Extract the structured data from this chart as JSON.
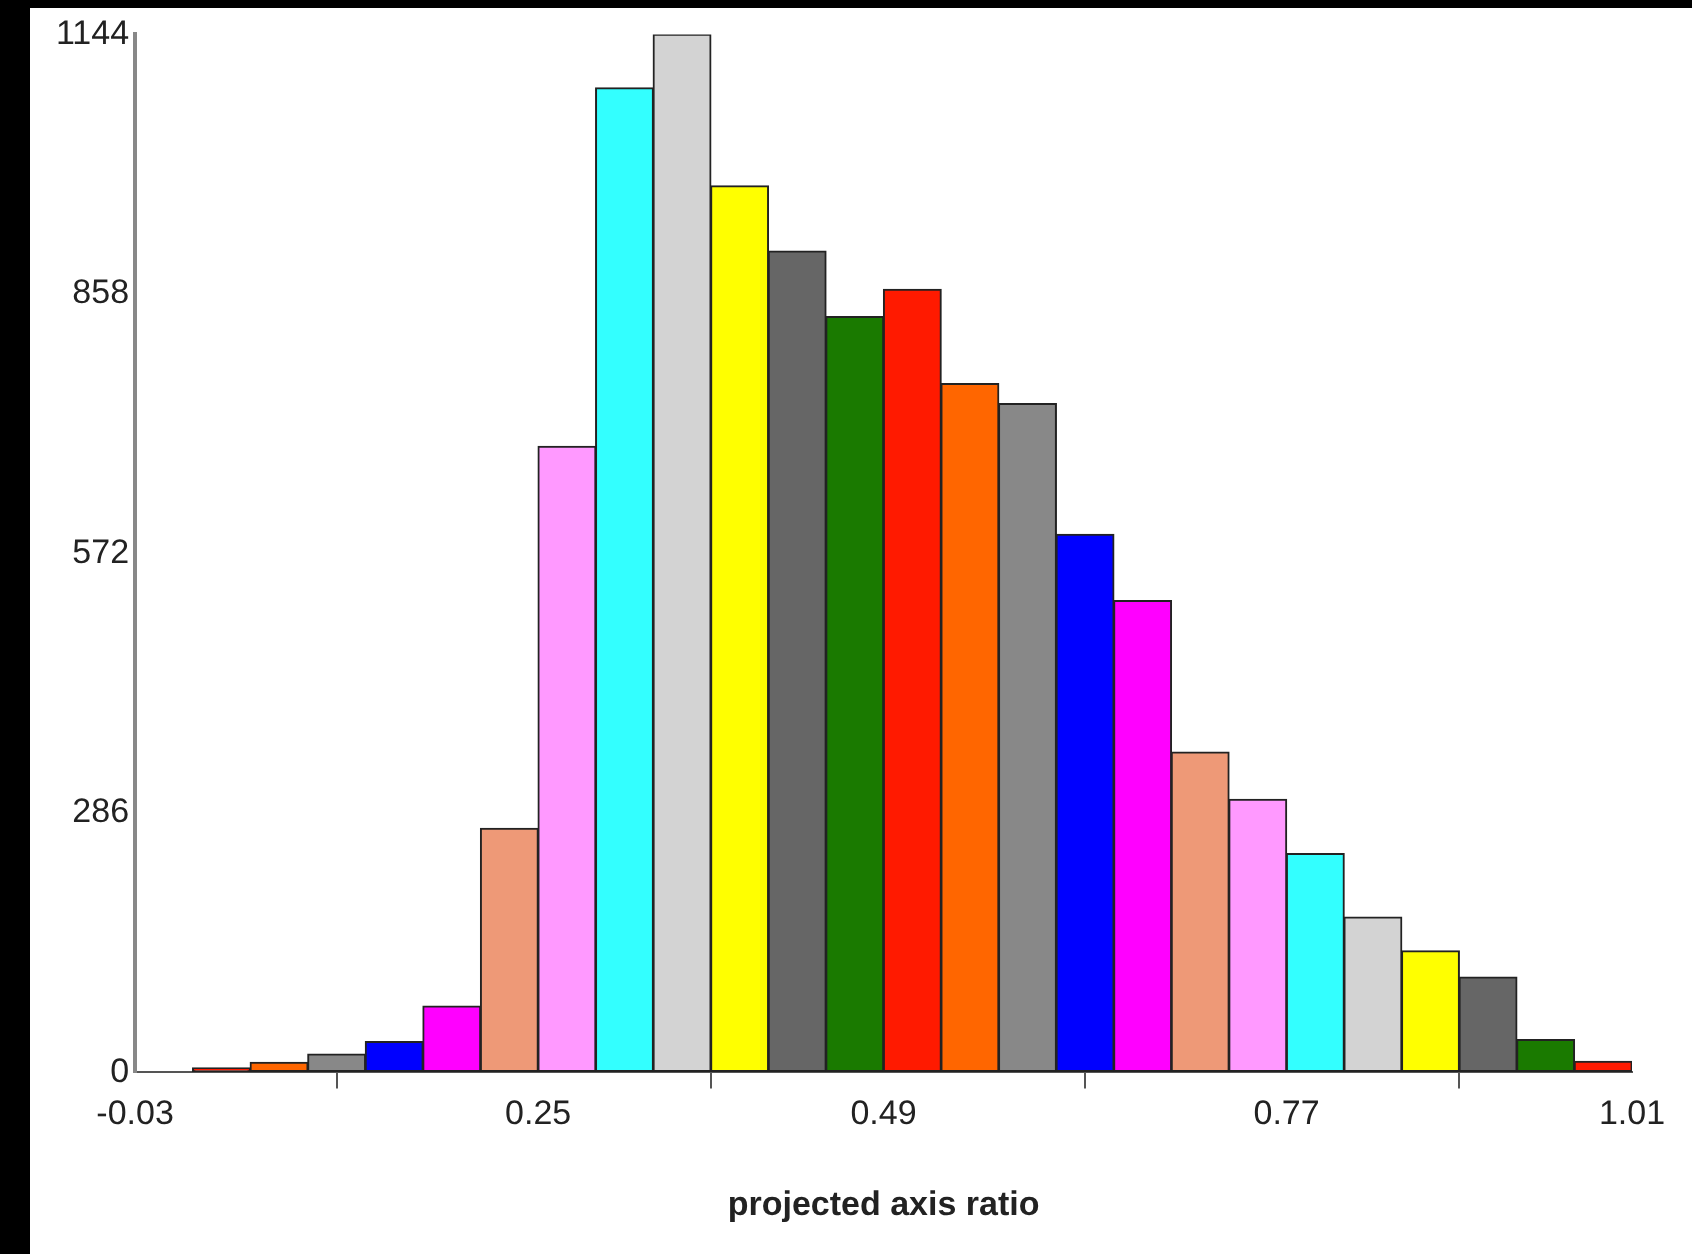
{
  "chart_data": {
    "type": "histogram",
    "xlabel": "projected axis ratio",
    "bins": [
      -0.03,
      0.01,
      0.05,
      0.09,
      0.13,
      0.17,
      0.21,
      0.25,
      0.29,
      0.33,
      0.37,
      0.41,
      0.45,
      0.49,
      0.53,
      0.57,
      0.61,
      0.65,
      0.69,
      0.73,
      0.77,
      0.81,
      0.85,
      0.89,
      0.93,
      0.97,
      1.01
    ],
    "values": [
      0,
      5,
      11,
      20,
      34,
      73,
      269,
      690,
      1085,
      1144,
      977,
      905,
      833,
      863,
      759,
      737,
      593,
      520,
      353,
      301,
      241,
      171,
      134,
      105,
      36,
      12
    ],
    "colors": [
      "#1a7a00",
      "#ff1a00",
      "#ff6600",
      "#888888",
      "#0000ff",
      "#ff00ff",
      "#ee9977",
      "#ff99ff",
      "#33ffff",
      "#d3d3d3",
      "#ffff00",
      "#666666",
      "#1a7a00",
      "#ff1a00",
      "#ff6600",
      "#888888",
      "#0000ff",
      "#ff00ff",
      "#ee9977",
      "#ff99ff",
      "#33ffff",
      "#d3d3d3",
      "#ffff00",
      "#666666",
      "#1a7a00",
      "#ff1a00"
    ],
    "xlim": [
      -0.03,
      1.01
    ],
    "xticks": [
      -0.03,
      0.25,
      0.49,
      0.77,
      1.01
    ],
    "ylim": [
      0,
      1144
    ],
    "yticks": [
      0,
      286,
      572,
      858,
      1144
    ],
    "grid": false,
    "legend": false
  }
}
